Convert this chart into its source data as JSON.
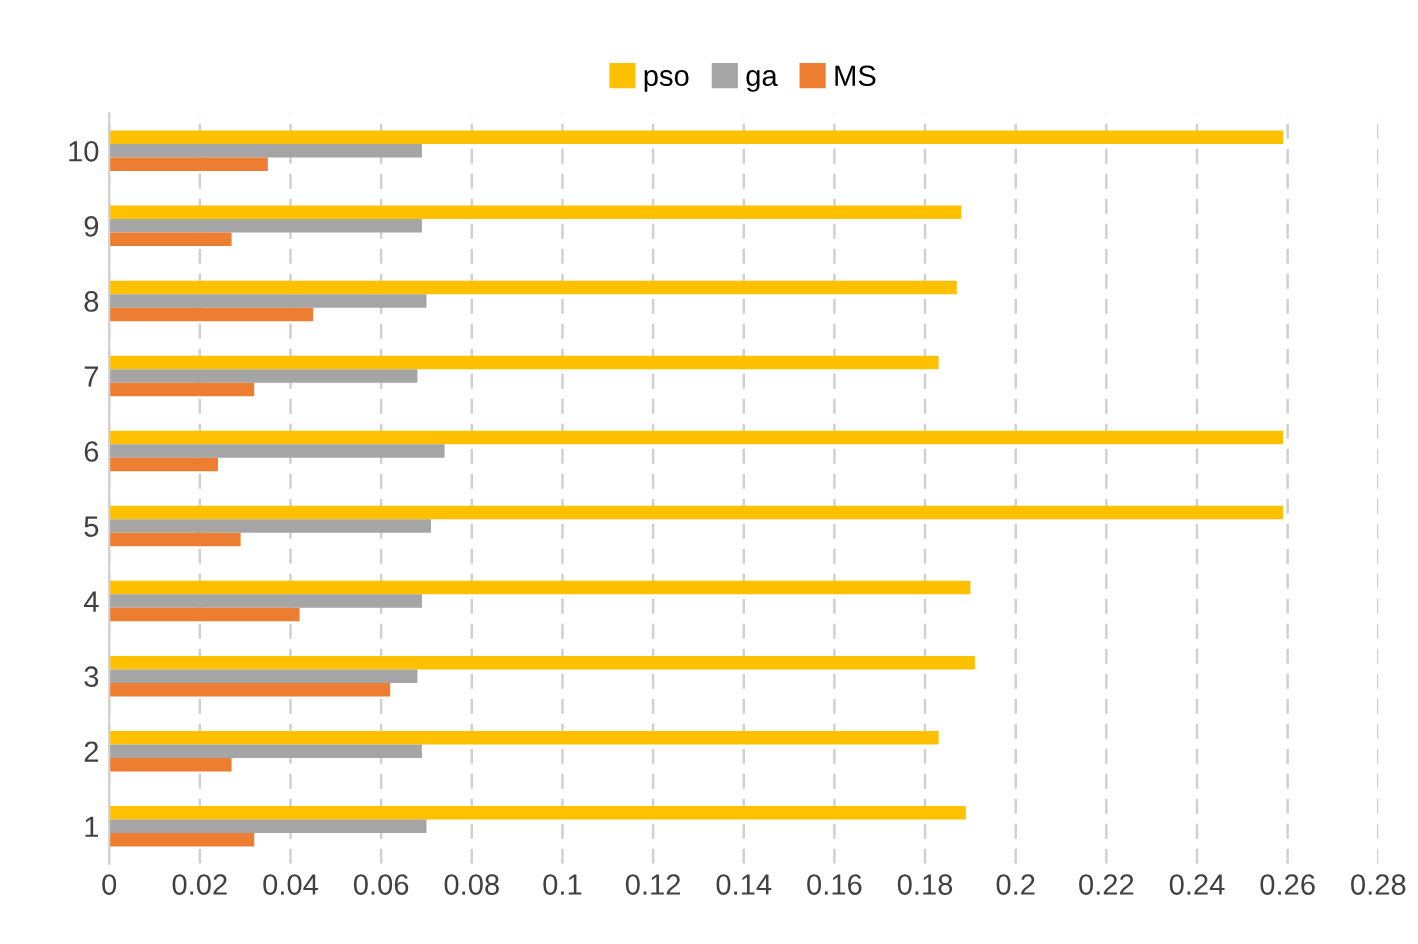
{
  "chart_data": {
    "type": "bar",
    "orientation": "horizontal",
    "categories": [
      "10",
      "9",
      "8",
      "7",
      "6",
      "5",
      "4",
      "3",
      "2",
      "1"
    ],
    "series": [
      {
        "name": "pso",
        "color": "#ffc000",
        "values": [
          0.259,
          0.188,
          0.187,
          0.183,
          0.259,
          0.259,
          0.19,
          0.191,
          0.183,
          0.189
        ]
      },
      {
        "name": "ga",
        "color": "#a5a5a5",
        "values": [
          0.069,
          0.069,
          0.07,
          0.068,
          0.074,
          0.071,
          0.069,
          0.068,
          0.069,
          0.07
        ]
      },
      {
        "name": "MS",
        "color": "#ed7d31",
        "values": [
          0.035,
          0.027,
          0.045,
          0.032,
          0.024,
          0.029,
          0.042,
          0.062,
          0.027,
          0.032
        ]
      }
    ],
    "xlim": [
      0,
      0.28
    ],
    "xticks": [
      0,
      0.02,
      0.04,
      0.06,
      0.08,
      {
        "value": 0.1,
        "label": "0.1"
      },
      0.12,
      0.14,
      0.16,
      0.18,
      {
        "value": 0.2,
        "label": "0.2"
      },
      0.22,
      0.24,
      0.26,
      0.28
    ],
    "grid": "x",
    "legend": "top"
  }
}
